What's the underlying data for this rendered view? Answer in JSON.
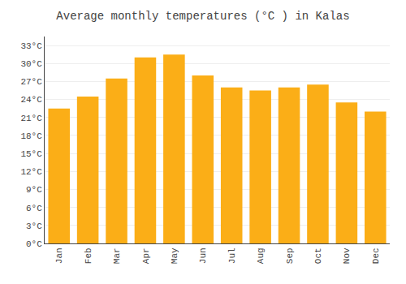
{
  "chart_data": {
    "type": "bar",
    "title": "Average monthly temperatures (°C ) in Kalas",
    "categories": [
      "Jan",
      "Feb",
      "Mar",
      "Apr",
      "May",
      "Jun",
      "Jul",
      "Aug",
      "Sep",
      "Oct",
      "Nov",
      "Dec"
    ],
    "values": [
      22.5,
      24.5,
      27.5,
      31.0,
      31.5,
      28.0,
      26.0,
      25.5,
      26.0,
      26.5,
      23.5,
      22.0
    ],
    "color": "#FBAE17",
    "ylim": [
      0,
      34.5
    ],
    "yticks": [
      {
        "value": 0,
        "label": "0°C"
      },
      {
        "value": 3,
        "label": "3°C"
      },
      {
        "value": 6,
        "label": "6°C"
      },
      {
        "value": 9,
        "label": "9°C"
      },
      {
        "value": 12,
        "label": "12°C"
      },
      {
        "value": 15,
        "label": "15°C"
      },
      {
        "value": 18,
        "label": "18°C"
      },
      {
        "value": 21,
        "label": "21°C"
      },
      {
        "value": 24,
        "label": "24°C"
      },
      {
        "value": 27,
        "label": "27°C"
      },
      {
        "value": 30,
        "label": "30°C"
      },
      {
        "value": 33,
        "label": "33°C"
      }
    ],
    "grid": true
  }
}
